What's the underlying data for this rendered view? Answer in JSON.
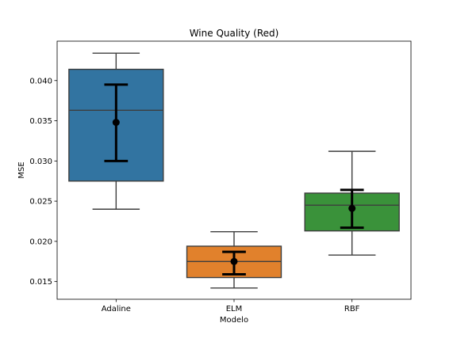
{
  "chart_data": {
    "type": "box",
    "title": "Wine Quality (Red)",
    "xlabel": "Modelo",
    "ylabel": "MSE",
    "ylim": [
      0.0128,
      0.0449
    ],
    "yticks": [
      0.015,
      0.02,
      0.025,
      0.03,
      0.035,
      0.04
    ],
    "ytick_labels": [
      "0.015",
      "0.020",
      "0.025",
      "0.030",
      "0.035",
      "0.040"
    ],
    "categories": [
      "Adaline",
      "ELM",
      "RBF"
    ],
    "grid": false,
    "legend": "none",
    "boxes": [
      {
        "category": "Adaline",
        "color": "#3274a1",
        "whisker_low": 0.024,
        "q1": 0.0275,
        "median": 0.0363,
        "q3": 0.0414,
        "whisker_high": 0.0434,
        "mean": 0.0348,
        "err_low": 0.03,
        "err_high": 0.0395
      },
      {
        "category": "ELM",
        "color": "#e1812c",
        "whisker_low": 0.0142,
        "q1": 0.0155,
        "median": 0.0175,
        "q3": 0.0194,
        "whisker_high": 0.0212,
        "mean": 0.0175,
        "err_low": 0.0159,
        "err_high": 0.0187
      },
      {
        "category": "RBF",
        "color": "#3a923a",
        "whisker_low": 0.0183,
        "q1": 0.0213,
        "median": 0.0245,
        "q3": 0.026,
        "whisker_high": 0.0312,
        "mean": 0.0241,
        "err_low": 0.0217,
        "err_high": 0.0264
      }
    ]
  }
}
